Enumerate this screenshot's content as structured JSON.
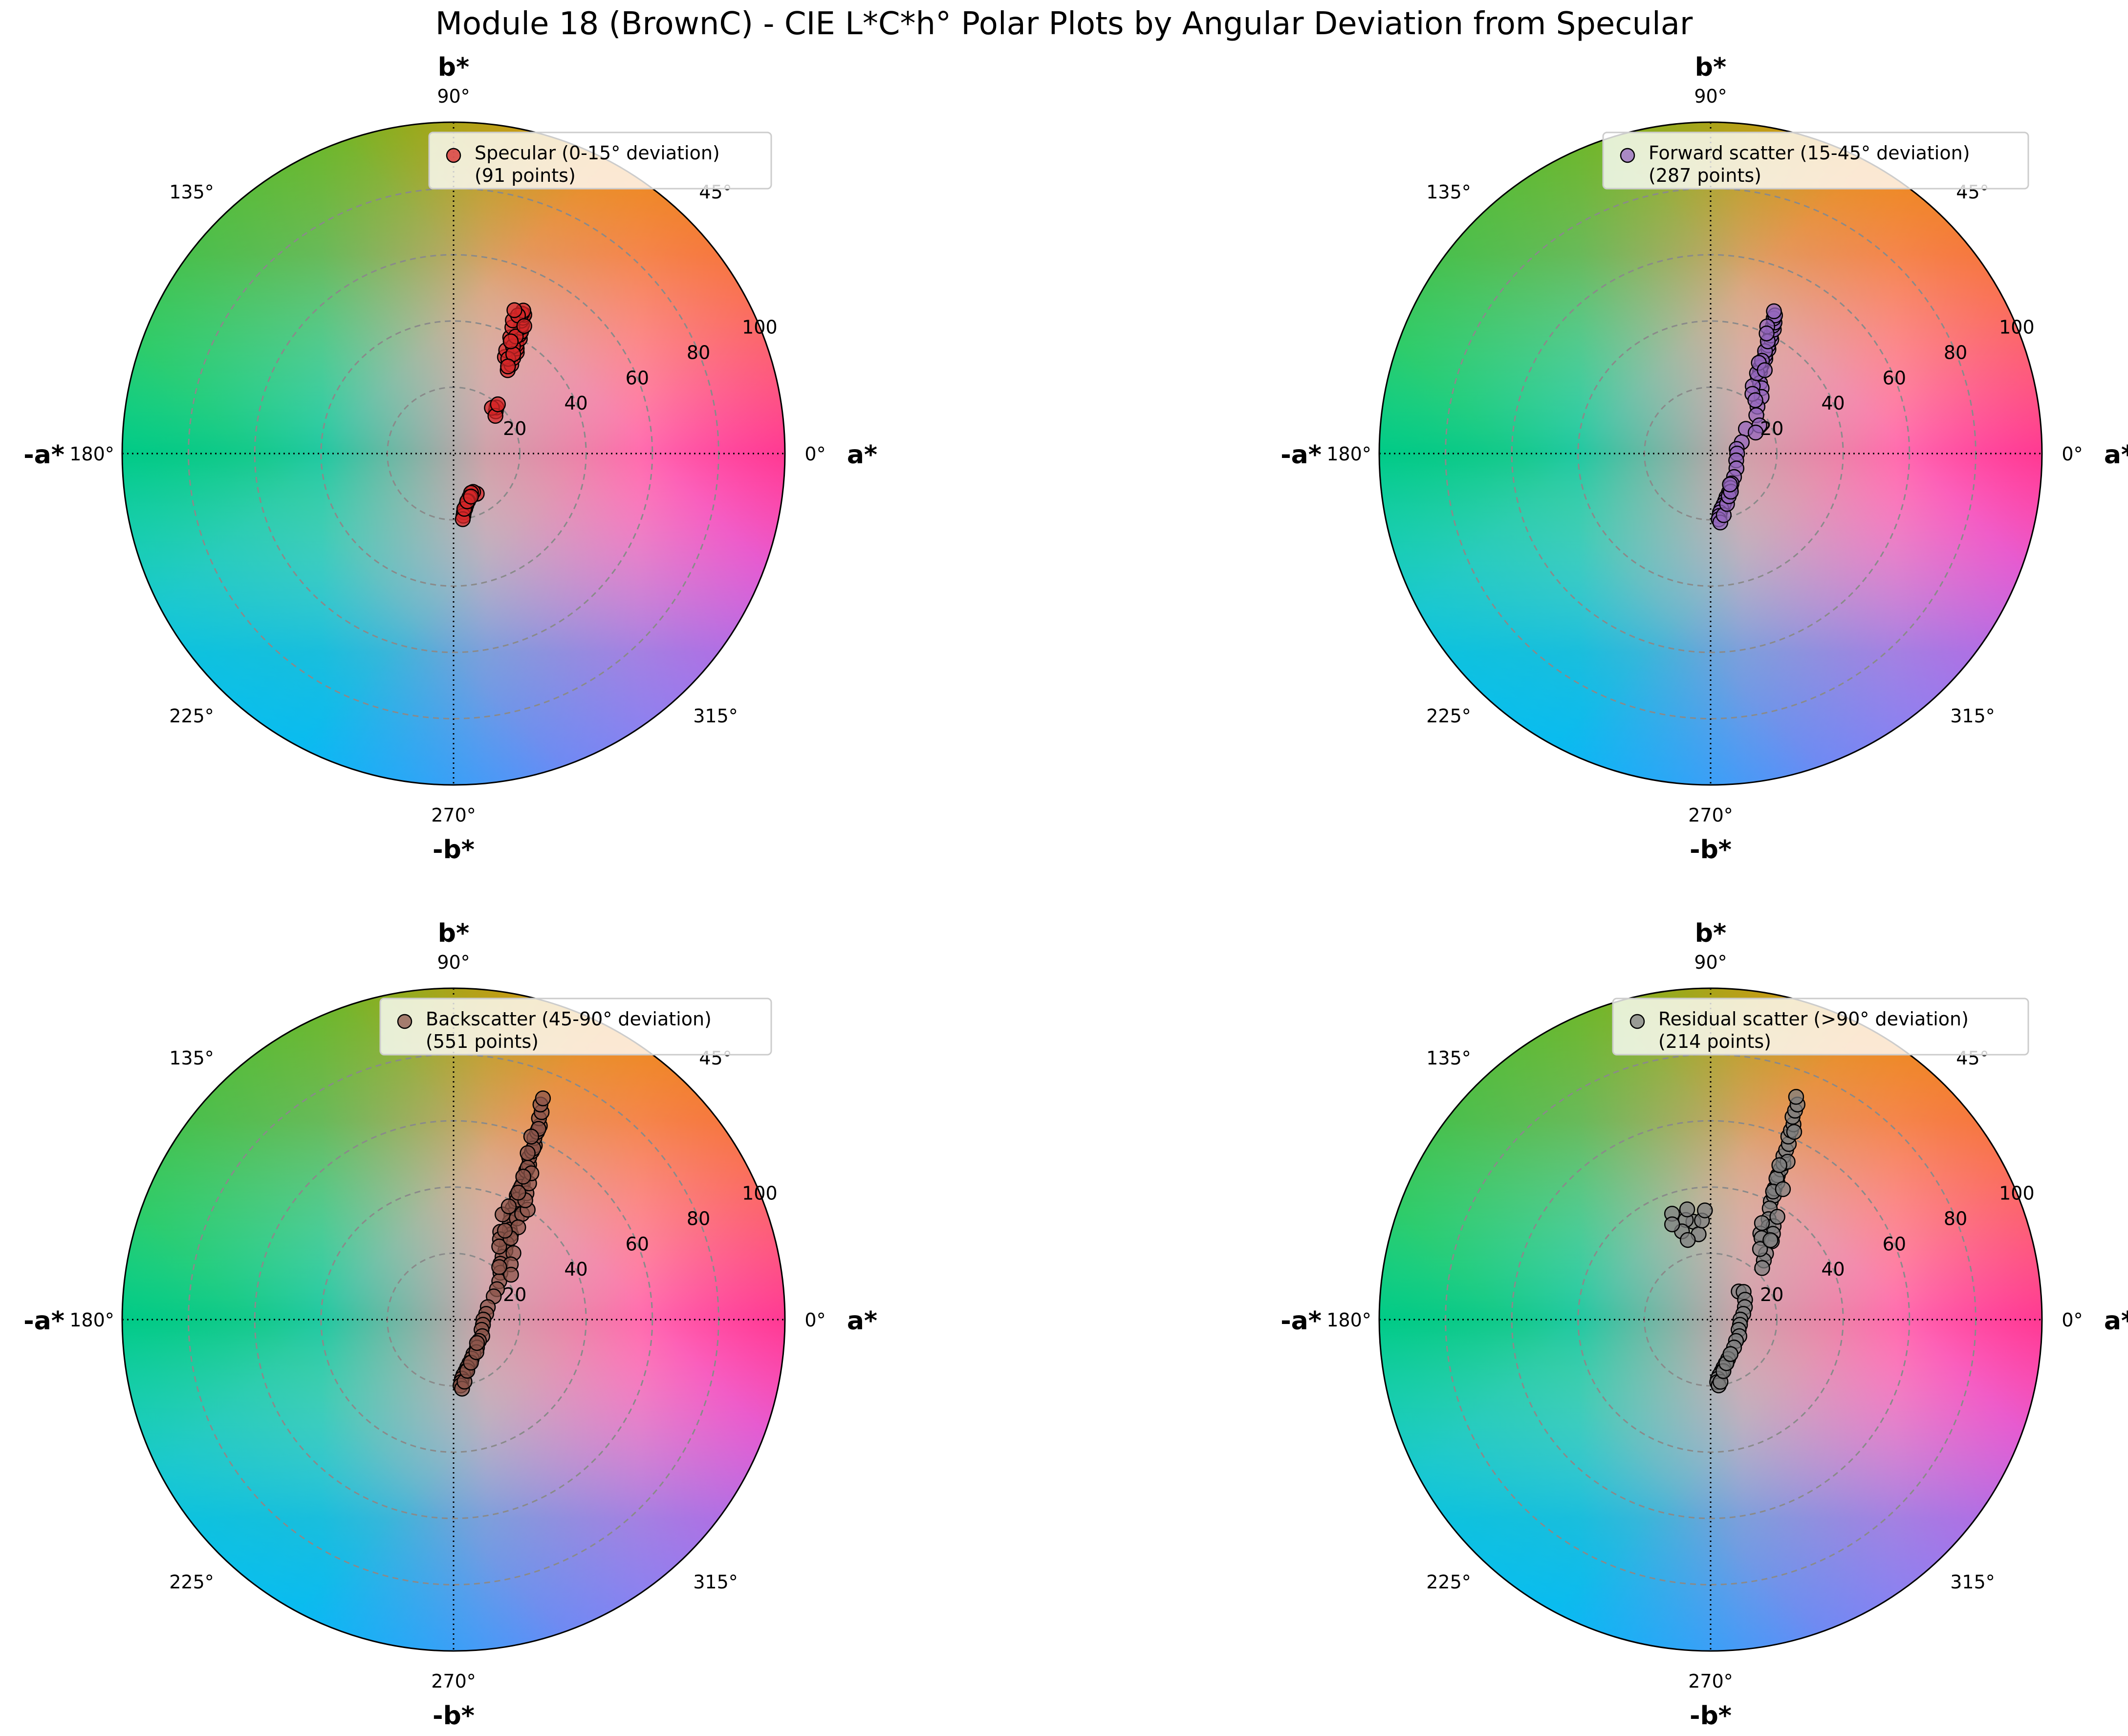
{
  "title": "Module 18 (BrownC) - CIE L*C*h° Polar Plots by Angular Deviation from Specular",
  "axis_labels": {
    "right": "a*",
    "left": "-a*",
    "top": "b*",
    "bottom": "-b*"
  },
  "angle_ticks": [
    "0°",
    "45°",
    "90°",
    "135°",
    "180°",
    "225°",
    "270°",
    "315°"
  ],
  "radial_ticks": [
    "20",
    "40",
    "60",
    "80",
    "100"
  ],
  "colors": {
    "specular": "#d62728",
    "forward": "#9467bd",
    "back": "#8c564b",
    "residual": "#7f7f7f"
  },
  "chart_data": [
    {
      "type": "scatter",
      "projection": "polar",
      "theta_unit": "degrees",
      "r_lim": [
        0,
        100
      ],
      "grid": true,
      "legend": "top-right",
      "legend_label": "Specular (0-15° deviation)",
      "legend_count": "(91 points)",
      "color": "#d62728",
      "points": [
        [
          57,
          30
        ],
        [
          57,
          32
        ],
        [
          58,
          34
        ],
        [
          58,
          36
        ],
        [
          59,
          37
        ],
        [
          60,
          38
        ],
        [
          60,
          40
        ],
        [
          61,
          41
        ],
        [
          61,
          42
        ],
        [
          62,
          43
        ],
        [
          62,
          44
        ],
        [
          63,
          45
        ],
        [
          63,
          46
        ],
        [
          63,
          47
        ],
        [
          64,
          47
        ],
        [
          64,
          48
        ],
        [
          62,
          33
        ],
        [
          63,
          35
        ],
        [
          64,
          39
        ],
        [
          65,
          42
        ],
        [
          61,
          37
        ],
        [
          66,
          44
        ],
        [
          62,
          40
        ],
        [
          65,
          46
        ],
        [
          67,
          47
        ],
        [
          60,
          33
        ],
        [
          59,
          35
        ],
        [
          58,
          31
        ],
        [
          63,
          38
        ],
        [
          61,
          44
        ],
        [
          45,
          18
        ],
        [
          47,
          19
        ],
        [
          50,
          18
        ],
        [
          42,
          17
        ],
        [
          48,
          20
        ],
        [
          -60,
          14
        ],
        [
          -63,
          13
        ],
        [
          -66,
          13
        ],
        [
          -70,
          14
        ],
        [
          -73,
          15
        ],
        [
          -76,
          16
        ],
        [
          -78,
          17
        ],
        [
          -80,
          18
        ],
        [
          -81,
          19
        ],
        [
          -82,
          20
        ],
        [
          -79,
          17
        ],
        [
          -74,
          15
        ],
        [
          -68,
          14
        ]
      ]
    },
    {
      "type": "scatter",
      "projection": "polar",
      "theta_unit": "degrees",
      "r_lim": [
        0,
        100
      ],
      "grid": true,
      "legend": "top-right",
      "legend_label": "Forward scatter (15-45° deviation)",
      "legend_count": "(287 points)",
      "color": "#9467bd",
      "points": [
        [
          59,
          29
        ],
        [
          60,
          31
        ],
        [
          60,
          33
        ],
        [
          61,
          34
        ],
        [
          61,
          36
        ],
        [
          62,
          37
        ],
        [
          62,
          39
        ],
        [
          63,
          40
        ],
        [
          63,
          42
        ],
        [
          64,
          43
        ],
        [
          64,
          44
        ],
        [
          65,
          45
        ],
        [
          65,
          46
        ],
        [
          66,
          47
        ],
        [
          60,
          30
        ],
        [
          62,
          35
        ],
        [
          63,
          38
        ],
        [
          61,
          32
        ],
        [
          66,
          42
        ],
        [
          65,
          40
        ],
        [
          58,
          27
        ],
        [
          55,
          26
        ],
        [
          52,
          25
        ],
        [
          48,
          23
        ],
        [
          45,
          20
        ],
        [
          40,
          18
        ],
        [
          35,
          13
        ],
        [
          30,
          17
        ],
        [
          25,
          15
        ],
        [
          58,
          24
        ],
        [
          55,
          22
        ],
        [
          50,
          21
        ],
        [
          60,
          28
        ],
        [
          62,
          31
        ],
        [
          57,
          30
        ],
        [
          20,
          10
        ],
        [
          10,
          8
        ],
        [
          0,
          8
        ],
        [
          -15,
          8
        ],
        [
          -30,
          9
        ],
        [
          -45,
          10
        ],
        [
          -55,
          11
        ],
        [
          -60,
          12
        ],
        [
          -65,
          13
        ],
        [
          -70,
          14
        ],
        [
          -73,
          15
        ],
        [
          -76,
          16
        ],
        [
          -79,
          17
        ],
        [
          -81,
          18
        ],
        [
          -82,
          19
        ],
        [
          -83,
          20
        ],
        [
          -82,
          21
        ],
        [
          -78,
          19
        ],
        [
          -72,
          16
        ],
        [
          -67,
          14
        ],
        [
          -62,
          13
        ],
        [
          -58,
          11
        ]
      ]
    },
    {
      "type": "scatter",
      "projection": "polar",
      "theta_unit": "degrees",
      "r_lim": [
        0,
        100
      ],
      "grid": true,
      "legend": "top-right",
      "legend_label": "Backscatter (45-90° deviation)",
      "legend_count": "(551 points)",
      "color": "#8c564b",
      "points": [
        [
          62,
          38
        ],
        [
          62,
          40
        ],
        [
          63,
          42
        ],
        [
          63,
          44
        ],
        [
          63,
          46
        ],
        [
          64,
          48
        ],
        [
          64,
          50
        ],
        [
          64,
          52
        ],
        [
          65,
          54
        ],
        [
          65,
          56
        ],
        [
          65,
          58
        ],
        [
          66,
          60
        ],
        [
          66,
          62
        ],
        [
          66,
          64
        ],
        [
          67,
          66
        ],
        [
          67,
          68
        ],
        [
          68,
          70
        ],
        [
          68,
          72
        ],
        [
          66,
          63
        ],
        [
          65,
          57
        ],
        [
          64,
          51
        ],
        [
          63,
          45
        ],
        [
          62,
          41
        ],
        [
          61,
          36
        ],
        [
          60,
          34
        ],
        [
          58,
          32
        ],
        [
          56,
          31
        ],
        [
          55,
          28
        ],
        [
          53,
          26
        ],
        [
          52,
          24
        ],
        [
          58,
          36
        ],
        [
          57,
          38
        ],
        [
          56,
          40
        ],
        [
          60,
          44
        ],
        [
          61,
          47
        ],
        [
          62,
          50
        ],
        [
          59,
          42
        ],
        [
          55,
          34
        ],
        [
          62,
          30
        ],
        [
          60,
          28
        ],
        [
          58,
          26
        ],
        [
          65,
          35
        ],
        [
          64,
          38
        ],
        [
          50,
          22
        ],
        [
          45,
          20
        ],
        [
          40,
          18
        ],
        [
          35,
          16
        ],
        [
          30,
          14
        ],
        [
          55,
          30
        ],
        [
          48,
          27
        ],
        [
          44,
          24
        ],
        [
          38,
          22
        ],
        [
          60,
          31
        ],
        [
          67,
          60
        ],
        [
          66,
          55
        ],
        [
          64,
          48
        ],
        [
          63,
          43
        ],
        [
          49,
          21
        ],
        [
          20,
          11
        ],
        [
          10,
          10
        ],
        [
          0,
          9
        ],
        [
          -10,
          9
        ],
        [
          -20,
          9
        ],
        [
          -30,
          10
        ],
        [
          -40,
          10
        ],
        [
          -50,
          11
        ],
        [
          -60,
          12
        ],
        [
          -65,
          13
        ],
        [
          -70,
          14
        ],
        [
          -74,
          15
        ],
        [
          -77,
          16
        ],
        [
          -80,
          17
        ],
        [
          -82,
          18
        ],
        [
          -83,
          19
        ],
        [
          -84,
          20
        ],
        [
          -83,
          21
        ],
        [
          -80,
          19
        ],
        [
          -75,
          16
        ],
        [
          -68,
          14
        ],
        [
          -55,
          12
        ],
        [
          -45,
          10
        ]
      ]
    },
    {
      "type": "scatter",
      "projection": "polar",
      "theta_unit": "degrees",
      "r_lim": [
        0,
        100
      ],
      "grid": true,
      "legend": "top-right",
      "legend_label": "Residual scatter (>90° deviation)",
      "legend_count": "(214 points)",
      "color": "#7f7f7f",
      "points": [
        [
          63,
          40
        ],
        [
          63,
          42
        ],
        [
          64,
          44
        ],
        [
          64,
          46
        ],
        [
          65,
          48
        ],
        [
          65,
          50
        ],
        [
          65,
          52
        ],
        [
          66,
          54
        ],
        [
          66,
          56
        ],
        [
          66,
          58
        ],
        [
          67,
          60
        ],
        [
          67,
          62
        ],
        [
          67,
          64
        ],
        [
          68,
          66
        ],
        [
          68,
          68
        ],
        [
          68,
          70
        ],
        [
          69,
          72
        ],
        [
          65,
          47
        ],
        [
          64,
          43
        ],
        [
          62,
          38
        ],
        [
          60,
          35
        ],
        [
          58,
          33
        ],
        [
          56,
          34
        ],
        [
          54,
          32
        ],
        [
          60,
          30
        ],
        [
          58,
          29
        ],
        [
          57,
          37
        ],
        [
          52,
          30
        ],
        [
          50,
          26
        ],
        [
          48,
          24
        ],
        [
          45,
          22
        ],
        [
          55,
          26
        ],
        [
          53,
          30
        ],
        [
          62,
          33
        ],
        [
          61,
          45
        ],
        [
          64,
          53
        ],
        [
          66,
          62
        ],
        [
          66,
          51
        ],
        [
          100,
          30
        ],
        [
          104,
          31
        ],
        [
          108,
          28
        ],
        [
          110,
          34
        ],
        [
          112,
          31
        ],
        [
          98,
          26
        ],
        [
          106,
          25
        ],
        [
          102,
          34
        ],
        [
          95,
          30
        ],
        [
          93,
          33
        ],
        [
          45,
          12
        ],
        [
          40,
          13
        ],
        [
          30,
          12
        ],
        [
          20,
          11
        ],
        [
          10,
          10
        ],
        [
          0,
          9
        ],
        [
          -10,
          9
        ],
        [
          -20,
          9
        ],
        [
          -30,
          10
        ],
        [
          -40,
          10
        ],
        [
          -50,
          11
        ],
        [
          -60,
          12
        ],
        [
          -66,
          13
        ],
        [
          -71,
          14
        ],
        [
          -75,
          15
        ],
        [
          -78,
          16
        ],
        [
          -81,
          17
        ],
        [
          -83,
          18
        ],
        [
          -84,
          19
        ],
        [
          -83,
          20
        ],
        [
          -81,
          19
        ],
        [
          -76,
          16
        ],
        [
          -70,
          14
        ],
        [
          -60,
          12
        ]
      ]
    }
  ]
}
